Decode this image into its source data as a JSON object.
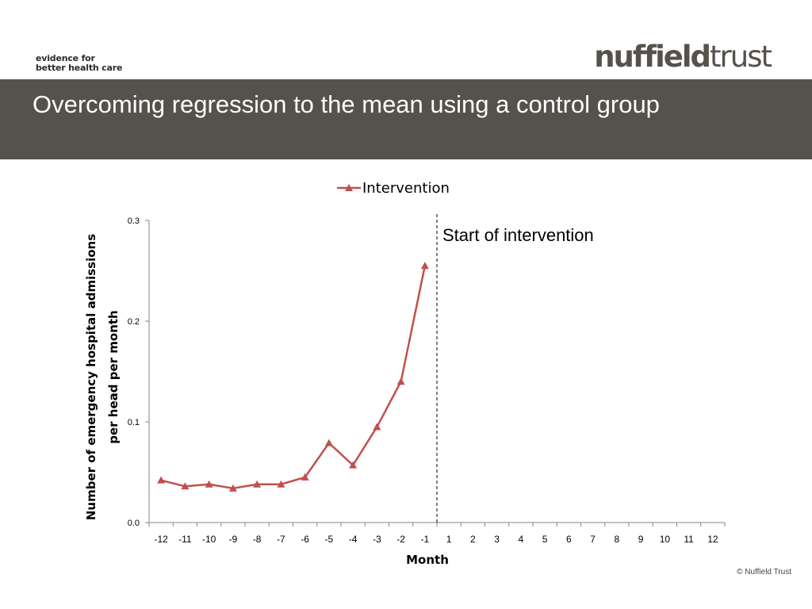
{
  "header": {
    "tagline": [
      "evidence for",
      "better health care"
    ],
    "logo_bold": "nuffield",
    "logo_light": "trust",
    "title": "Overcoming regression to the mean using a control group"
  },
  "colors": {
    "title_band": "#55514b",
    "series_intervention": "#c0504d"
  },
  "chart_data": {
    "type": "line",
    "x": [
      -12,
      -11,
      -10,
      -9,
      -8,
      -7,
      -6,
      -5,
      -4,
      -3,
      -2,
      -1,
      1,
      2,
      3,
      4,
      5,
      6,
      7,
      8,
      9,
      10,
      11,
      12
    ],
    "series": [
      {
        "name": "Intervention",
        "marker": "triangle",
        "values": [
          0.042,
          0.036,
          0.038,
          0.034,
          0.038,
          0.038,
          0.045,
          0.079,
          0.057,
          0.095,
          0.14,
          0.255,
          null,
          null,
          null,
          null,
          null,
          null,
          null,
          null,
          null,
          null,
          null,
          null
        ]
      }
    ],
    "xlabel": "Month",
    "ylabel": "Number of emergency hospital admissions per head per month",
    "ylim": [
      0,
      0.3
    ],
    "yticks": [
      "0.0",
      "0.1",
      "0.2",
      "0.3"
    ],
    "legend_position": "top",
    "grid": false,
    "annotation": {
      "text": "Start of intervention",
      "line_between": [
        -1,
        1
      ],
      "line_style": "dashed"
    }
  },
  "footer": {
    "copyright": "© Nuffield Trust"
  }
}
